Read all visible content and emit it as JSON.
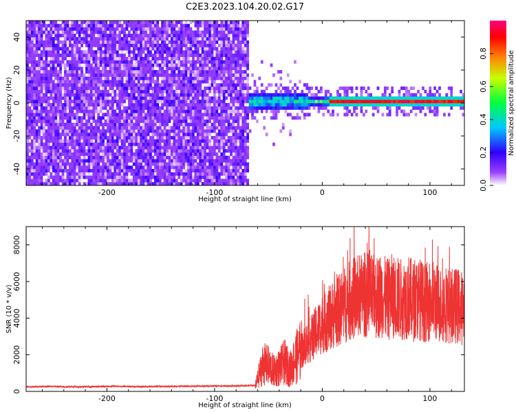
{
  "title": "C2E3.2023.104.20.02.G17",
  "chart_data": [
    {
      "type": "heatmap",
      "xlabel": "Height of straight line (km)",
      "ylabel": "Frequency (Hz)",
      "xlim": [
        -275,
        132
      ],
      "ylim": [
        -50,
        50
      ],
      "x_ticks": [
        -200,
        -100,
        0,
        100
      ],
      "x_tick_labels": [
        "-200",
        "-100",
        "0",
        "100"
      ],
      "y_ticks": [
        -40,
        -20,
        0,
        20,
        40
      ],
      "y_tick_labels": [
        "-40",
        "-20",
        "0",
        "20",
        "40"
      ],
      "regions": [
        {
          "name": "noise",
          "x_range": [
            -275,
            -70
          ],
          "freq_range": [
            -50,
            50
          ],
          "typical_amplitude": 0.15
        },
        {
          "name": "tone",
          "x_range": [
            -70,
            132
          ],
          "center_freq": 0,
          "typical_amplitude": 0.9
        }
      ],
      "colorbar": {
        "label": "Normalized spectral amplitude",
        "range": [
          0,
          1
        ],
        "ticks": [
          0.0,
          0.2,
          0.4,
          0.6,
          0.8
        ],
        "tick_labels": [
          "0.0",
          "0.2",
          "0.4",
          "0.6",
          "0.8"
        ],
        "colors": [
          "#ffffff",
          "#7a00ff",
          "#0000ff",
          "#00c8ff",
          "#00ff40",
          "#e0ff00",
          "#ff8000",
          "#ff0000",
          "#ff0080"
        ]
      }
    },
    {
      "type": "line",
      "xlabel": "Height of straight line (km)",
      "ylabel": "SNR (10 * v/v)",
      "xlim": [
        -275,
        132
      ],
      "ylim": [
        0,
        9000
      ],
      "x_ticks": [
        -200,
        -100,
        0,
        100
      ],
      "x_tick_labels": [
        "-200",
        "-100",
        "0",
        "100"
      ],
      "y_ticks": [
        0,
        2000,
        4000,
        6000,
        8000
      ],
      "y_tick_labels": [
        "0",
        "2000",
        "4000",
        "6000",
        "8000"
      ],
      "color": "#ee3333",
      "series": [
        {
          "x": [
            -275,
            -250,
            -225,
            -200,
            -175,
            -150,
            -125,
            -100,
            -80,
            -62,
            -55,
            -50,
            -45,
            -40,
            -35,
            -30,
            -25,
            -20,
            -15,
            -10,
            -5,
            0,
            5,
            10,
            15,
            20,
            25,
            30,
            35,
            40,
            45,
            50,
            55,
            60,
            65,
            70,
            75,
            80,
            85,
            90,
            95,
            100,
            105,
            110,
            115,
            120,
            125,
            132
          ],
          "y": [
            250,
            270,
            250,
            280,
            260,
            270,
            280,
            290,
            300,
            320,
            1500,
            1400,
            1100,
            1300,
            1600,
            1200,
            1800,
            2200,
            2600,
            2900,
            3300,
            3700,
            3900,
            4200,
            4400,
            4700,
            4900,
            5100,
            5200,
            5300,
            5200,
            5100,
            5300,
            5000,
            5200,
            5100,
            5000,
            5200,
            4900,
            5100,
            4800,
            5000,
            4900,
            4700,
            4800,
            4600,
            4700,
            4500
          ]
        }
      ]
    }
  ]
}
